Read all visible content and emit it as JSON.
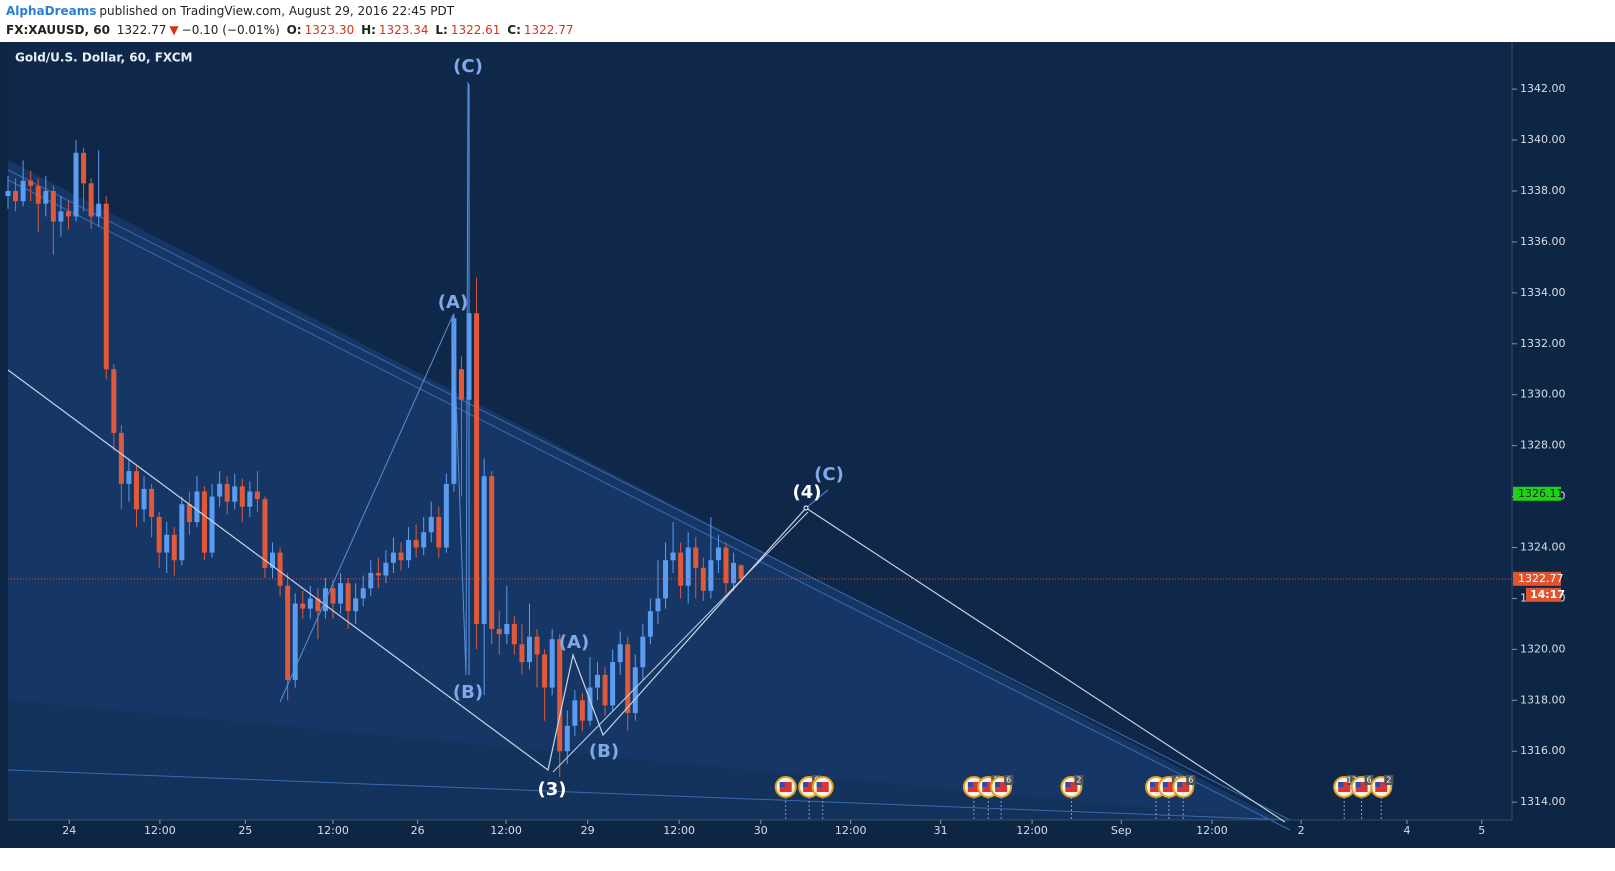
{
  "header": {
    "user": "AlphaDreams",
    "published": "published on TradingView.com, August 29, 2016 22:45 PDT",
    "symbol": "FX:XAUUSD, 60",
    "last": "1322.77",
    "arrow": "▼",
    "change": "−0.10 (−0.01%)",
    "ohlc": [
      [
        "O:",
        "1323.30"
      ],
      [
        "H:",
        "1323.34"
      ],
      [
        "L:",
        "1322.61"
      ],
      [
        "C:",
        "1322.77"
      ]
    ]
  },
  "chart_data": {
    "type": "candlestick",
    "title": "Gold/U.S. Dollar, 60, FXCM",
    "x": [
      0,
      1,
      2,
      3,
      4,
      5,
      6,
      7,
      8,
      9,
      10,
      11,
      12,
      13,
      14,
      15,
      16,
      17,
      18,
      19,
      20,
      21,
      22,
      23,
      24,
      25,
      26,
      27,
      28,
      29,
      30,
      31,
      32,
      33,
      34,
      35,
      36,
      37,
      38,
      39,
      40,
      41,
      42,
      43,
      44,
      45,
      46,
      47,
      48,
      49,
      50,
      51,
      52,
      53,
      54,
      55,
      56,
      57,
      58,
      59,
      60,
      61,
      62,
      63,
      64,
      65,
      66,
      67,
      68,
      69,
      70,
      71,
      72,
      73,
      74,
      75,
      76,
      77,
      78,
      79,
      80,
      81,
      82,
      83,
      84,
      85,
      86,
      87,
      88,
      89,
      90,
      91,
      92,
      93,
      94,
      95,
      96,
      97
    ],
    "open": [
      1337.8,
      1338.0,
      1337.6,
      1338.4,
      1338.2,
      1337.5,
      1338.0,
      1336.8,
      1337.2,
      1337.0,
      1339.5,
      1338.3,
      1337.0,
      1337.5,
      1331.0,
      1328.5,
      1326.5,
      1327.0,
      1325.5,
      1326.3,
      1325.2,
      1323.8,
      1324.5,
      1323.5,
      1325.7,
      1325.0,
      1326.2,
      1323.8,
      1326.0,
      1326.5,
      1325.8,
      1326.4,
      1325.6,
      1326.2,
      1325.9,
      1323.2,
      1323.8,
      1322.5,
      1318.8,
      1321.8,
      1321.6,
      1322.0,
      1321.5,
      1322.4,
      1321.8,
      1322.6,
      1321.5,
      1322.0,
      1322.4,
      1323.0,
      1322.9,
      1323.4,
      1323.8,
      1323.5,
      1324.3,
      1324.0,
      1324.6,
      1325.2,
      1324.0,
      1326.5,
      1331.0,
      1329.8,
      1333.2,
      1321.0,
      1326.8,
      1320.8,
      1320.6,
      1321.0,
      1320.2,
      1319.5,
      1320.5,
      1319.8,
      1318.5,
      1320.4,
      1316.0,
      1317.0,
      1318.0,
      1317.2,
      1318.5,
      1319.0,
      1317.8,
      1319.5,
      1320.2,
      1317.5,
      1319.3,
      1320.5,
      1321.5,
      1322.0,
      1323.5,
      1323.8,
      1322.5,
      1324.0,
      1323.2,
      1322.3,
      1323.5,
      1324.0,
      1322.6,
      1323.3
    ],
    "high": [
      1338.6,
      1338.5,
      1339.2,
      1338.8,
      1338.5,
      1338.6,
      1338.2,
      1337.8,
      1337.6,
      1340.0,
      1339.7,
      1338.5,
      1339.6,
      1337.8,
      1331.2,
      1328.8,
      1327.5,
      1327.2,
      1326.8,
      1326.5,
      1325.4,
      1325.0,
      1324.8,
      1326.0,
      1326.2,
      1326.8,
      1326.4,
      1326.5,
      1327.0,
      1326.8,
      1326.9,
      1326.7,
      1326.6,
      1327.0,
      1326.0,
      1324.2,
      1324.0,
      1323.0,
      1322.2,
      1322.3,
      1322.5,
      1322.4,
      1322.8,
      1322.7,
      1323.0,
      1322.8,
      1322.6,
      1322.9,
      1323.5,
      1323.6,
      1323.9,
      1324.4,
      1324.2,
      1324.8,
      1324.9,
      1325.2,
      1325.8,
      1325.6,
      1326.9,
      1333.2,
      1331.5,
      1342.2,
      1334.6,
      1327.5,
      1327.0,
      1321.5,
      1322.5,
      1321.3,
      1321.0,
      1321.8,
      1320.8,
      1320.0,
      1320.8,
      1320.6,
      1317.6,
      1318.4,
      1318.3,
      1319.7,
      1319.5,
      1319.3,
      1320.0,
      1320.7,
      1320.5,
      1319.8,
      1321.0,
      1322.0,
      1323.5,
      1324.2,
      1325.0,
      1324.2,
      1324.6,
      1324.4,
      1323.6,
      1325.2,
      1324.5,
      1324.2,
      1323.8,
      1323.34
    ],
    "low": [
      1337.3,
      1337.2,
      1337.4,
      1337.6,
      1336.4,
      1337.0,
      1335.5,
      1336.2,
      1336.5,
      1336.8,
      1337.2,
      1336.5,
      1336.6,
      1330.6,
      1327.8,
      1325.5,
      1325.8,
      1324.8,
      1325.0,
      1324.4,
      1323.2,
      1323.0,
      1322.9,
      1323.3,
      1324.5,
      1324.8,
      1323.5,
      1323.6,
      1325.6,
      1325.3,
      1325.5,
      1325.0,
      1325.2,
      1325.4,
      1322.8,
      1322.8,
      1322.1,
      1318.0,
      1318.5,
      1321.2,
      1321.2,
      1320.4,
      1321.2,
      1321.2,
      1321.4,
      1320.8,
      1321.0,
      1321.7,
      1322.1,
      1322.4,
      1322.6,
      1323.0,
      1323.1,
      1323.2,
      1323.6,
      1323.7,
      1324.2,
      1323.6,
      1323.8,
      1326.2,
      1326.0,
      1319.0,
      1320.0,
      1318.2,
      1320.2,
      1319.8,
      1320.2,
      1319.8,
      1319.0,
      1319.2,
      1318.5,
      1317.2,
      1318.2,
      1315.0,
      1315.5,
      1316.6,
      1316.8,
      1317.0,
      1318.0,
      1317.4,
      1317.6,
      1319.0,
      1316.8,
      1317.2,
      1318.8,
      1320.2,
      1321.0,
      1321.6,
      1323.0,
      1322.0,
      1321.8,
      1322.0,
      1321.9,
      1322.0,
      1323.0,
      1322.2,
      1322.3,
      1322.61
    ],
    "close": [
      1338.0,
      1337.6,
      1338.4,
      1338.2,
      1337.5,
      1338.0,
      1336.8,
      1337.2,
      1337.0,
      1339.5,
      1338.3,
      1337.0,
      1337.5,
      1331.0,
      1328.5,
      1326.5,
      1327.0,
      1325.5,
      1326.3,
      1325.2,
      1323.8,
      1324.5,
      1323.5,
      1325.7,
      1325.0,
      1326.2,
      1323.8,
      1326.0,
      1326.5,
      1325.8,
      1326.4,
      1325.6,
      1326.2,
      1325.9,
      1323.2,
      1323.8,
      1322.5,
      1318.8,
      1321.8,
      1321.6,
      1322.0,
      1321.5,
      1322.4,
      1321.8,
      1322.6,
      1321.5,
      1322.0,
      1322.4,
      1323.0,
      1322.9,
      1323.4,
      1323.8,
      1323.5,
      1324.3,
      1324.0,
      1324.6,
      1325.2,
      1324.0,
      1326.5,
      1333.0,
      1329.8,
      1333.2,
      1321.0,
      1326.8,
      1320.8,
      1320.6,
      1321.0,
      1320.2,
      1319.5,
      1320.5,
      1319.8,
      1318.5,
      1320.4,
      1316.0,
      1317.0,
      1318.0,
      1317.2,
      1318.5,
      1319.0,
      1317.8,
      1319.5,
      1320.2,
      1317.5,
      1319.3,
      1320.5,
      1321.5,
      1322.0,
      1323.5,
      1323.8,
      1322.5,
      1324.0,
      1323.2,
      1322.3,
      1323.5,
      1324.0,
      1322.6,
      1323.4,
      1322.77
    ],
    "up_color": "#5b9cf0",
    "down_color": "#e0593a",
    "xlim": [
      0,
      199
    ],
    "ylim": [
      1313.3,
      1343.85
    ],
    "grid": false,
    "xticks": [
      {
        "value": 8.1,
        "label": "24"
      },
      {
        "value": 20.1,
        "label": "12:00"
      },
      {
        "value": 31.4,
        "label": "25"
      },
      {
        "value": 43.0,
        "label": "12:00"
      },
      {
        "value": 54.2,
        "label": "26"
      },
      {
        "value": 65.9,
        "label": "12:00"
      },
      {
        "value": 76.7,
        "label": "29"
      },
      {
        "value": 88.8,
        "label": "12:00"
      },
      {
        "value": 99.6,
        "label": "30"
      },
      {
        "value": 111.5,
        "label": "12:00"
      },
      {
        "value": 123.4,
        "label": "31"
      },
      {
        "value": 135.5,
        "label": "12:00"
      },
      {
        "value": 147.3,
        "label": "Sep"
      },
      {
        "value": 159.3,
        "label": "12:00"
      },
      {
        "value": 171.1,
        "label": "2"
      },
      {
        "value": 185.1,
        "label": "4"
      },
      {
        "value": 195.0,
        "label": "5"
      }
    ],
    "yticks": [
      {
        "value": 1314,
        "label": "1314.00"
      },
      {
        "value": 1316,
        "label": "1316.00"
      },
      {
        "value": 1318,
        "label": "1318.00"
      },
      {
        "value": 1320,
        "label": "1320.00"
      },
      {
        "value": 1322,
        "label": "1322.00"
      },
      {
        "value": 1324,
        "label": "1324.00"
      },
      {
        "value": 1326,
        "label": "1326.00"
      },
      {
        "value": 1328,
        "label": "1328.00"
      },
      {
        "value": 1330,
        "label": "1330.00"
      },
      {
        "value": 1332,
        "label": "1332.00"
      },
      {
        "value": 1334,
        "label": "1334.00"
      },
      {
        "value": 1336,
        "label": "1336.00"
      },
      {
        "value": 1338,
        "label": "1338.00"
      },
      {
        "value": 1340,
        "label": "1340.00"
      },
      {
        "value": 1342,
        "label": "1342.00"
      }
    ],
    "price_lines": [
      {
        "value": 1322.77,
        "label": "1322.77",
        "color": "#e0532f"
      },
      {
        "value": 1326.11,
        "label": "1326.11",
        "color": "#22d21a"
      }
    ],
    "countdown": "14:17",
    "events": [
      {
        "x": 102.9
      },
      {
        "x": 106.0,
        "label": "6"
      },
      {
        "x": 107.8
      },
      {
        "x": 127.8
      },
      {
        "x": 129.7,
        "label": "2"
      },
      {
        "x": 131.4,
        "label": "6"
      },
      {
        "x": 140.7,
        "label": "2"
      },
      {
        "x": 151.9
      },
      {
        "x": 153.6,
        "label": "4"
      },
      {
        "x": 155.5,
        "label": "6"
      },
      {
        "x": 176.8,
        "label": "12"
      },
      {
        "x": 179.1,
        "label": "6"
      },
      {
        "x": 181.7,
        "label": "2"
      }
    ],
    "waves": [
      "(C)",
      "(A)",
      "(B)",
      "(3)",
      "(A)",
      "(B)",
      "(4)",
      "(C)"
    ]
  }
}
